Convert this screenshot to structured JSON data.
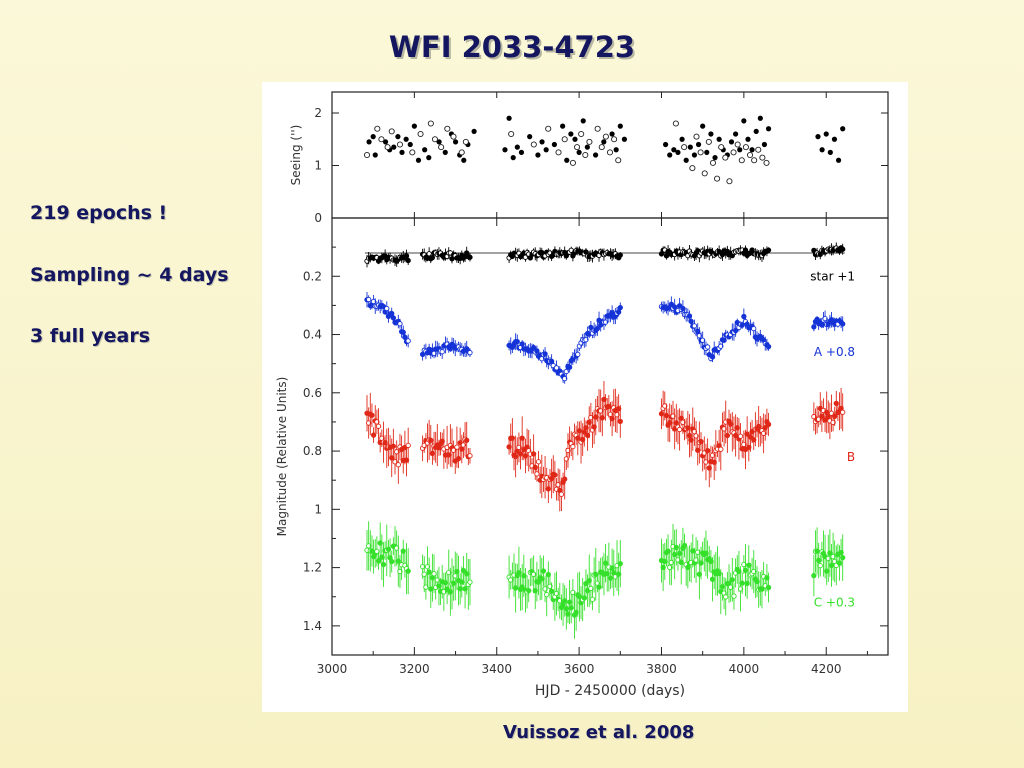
{
  "slide": {
    "title": "WFI 2033-4723",
    "bullets": [
      "219 epochs !",
      "Sampling ~ 4 days",
      "3 full years"
    ],
    "credit": "Vuissoz et al. 2008"
  },
  "chart_data": [
    {
      "type": "scatter",
      "panel": "seeing",
      "ylabel": "Seeing ('')",
      "ylim": [
        0,
        2.4
      ],
      "yticks": [
        0,
        1,
        2
      ],
      "xlim": [
        3000,
        4350
      ],
      "seasons": [
        [
          3085,
          3185
        ],
        [
          3220,
          3335
        ],
        [
          3430,
          3700
        ],
        [
          3800,
          4060
        ],
        [
          4170,
          4240
        ]
      ],
      "series": [
        {
          "marker": "filled",
          "points": [
            [
              3090,
              1.45
            ],
            [
              3100,
              1.55
            ],
            [
              3105,
              1.2
            ],
            [
              3130,
              1.45
            ],
            [
              3140,
              1.3
            ],
            [
              3150,
              1.35
            ],
            [
              3160,
              1.55
            ],
            [
              3170,
              1.25
            ],
            [
              3180,
              1.5
            ],
            [
              3190,
              1.4
            ],
            [
              3200,
              1.75
            ],
            [
              3210,
              1.1
            ],
            [
              3225,
              1.3
            ],
            [
              3235,
              1.15
            ],
            [
              3260,
              1.45
            ],
            [
              3275,
              1.25
            ],
            [
              3290,
              1.6
            ],
            [
              3300,
              1.45
            ],
            [
              3310,
              1.2
            ],
            [
              3320,
              1.1
            ],
            [
              3330,
              1.4
            ],
            [
              3345,
              1.65
            ],
            [
              3420,
              1.3
            ],
            [
              3430,
              1.9
            ],
            [
              3440,
              1.15
            ],
            [
              3450,
              1.35
            ],
            [
              3460,
              1.25
            ],
            [
              3480,
              1.55
            ],
            [
              3500,
              1.2
            ],
            [
              3510,
              1.45
            ],
            [
              3520,
              1.3
            ],
            [
              3540,
              1.4
            ],
            [
              3560,
              1.75
            ],
            [
              3570,
              1.1
            ],
            [
              3580,
              1.6
            ],
            [
              3590,
              1.5
            ],
            [
              3600,
              1.25
            ],
            [
              3610,
              1.85
            ],
            [
              3620,
              1.35
            ],
            [
              3640,
              1.2
            ],
            [
              3660,
              1.45
            ],
            [
              3680,
              1.6
            ],
            [
              3690,
              1.3
            ],
            [
              3700,
              1.75
            ],
            [
              3710,
              1.5
            ],
            [
              3810,
              1.4
            ],
            [
              3820,
              1.2
            ],
            [
              3830,
              1.3
            ],
            [
              3840,
              1.25
            ],
            [
              3850,
              1.5
            ],
            [
              3860,
              1.1
            ],
            [
              3870,
              1.35
            ],
            [
              3880,
              1.2
            ],
            [
              3890,
              1.4
            ],
            [
              3900,
              1.75
            ],
            [
              3910,
              1.25
            ],
            [
              3920,
              1.6
            ],
            [
              3930,
              1.15
            ],
            [
              3940,
              1.5
            ],
            [
              3950,
              1.3
            ],
            [
              3960,
              1.2
            ],
            [
              3970,
              1.45
            ],
            [
              3980,
              1.6
            ],
            [
              3990,
              1.3
            ],
            [
              4000,
              1.85
            ],
            [
              4010,
              1.5
            ],
            [
              4020,
              1.3
            ],
            [
              4030,
              1.65
            ],
            [
              4040,
              1.9
            ],
            [
              4050,
              1.4
            ],
            [
              4060,
              1.7
            ],
            [
              4180,
              1.55
            ],
            [
              4190,
              1.3
            ],
            [
              4200,
              1.6
            ],
            [
              4210,
              1.25
            ],
            [
              4220,
              1.5
            ],
            [
              4230,
              1.1
            ],
            [
              4240,
              1.7
            ]
          ]
        },
        {
          "marker": "open",
          "points": [
            [
              3085,
              1.2
            ],
            [
              3110,
              1.7
            ],
            [
              3120,
              1.5
            ],
            [
              3135,
              1.35
            ],
            [
              3145,
              1.65
            ],
            [
              3165,
              1.4
            ],
            [
              3195,
              1.25
            ],
            [
              3215,
              1.6
            ],
            [
              3240,
              1.8
            ],
            [
              3250,
              1.5
            ],
            [
              3265,
              1.35
            ],
            [
              3280,
              1.7
            ],
            [
              3295,
              1.55
            ],
            [
              3315,
              1.25
            ],
            [
              3325,
              1.45
            ],
            [
              3435,
              1.6
            ],
            [
              3490,
              1.4
            ],
            [
              3525,
              1.7
            ],
            [
              3550,
              1.25
            ],
            [
              3565,
              1.5
            ],
            [
              3585,
              1.05
            ],
            [
              3595,
              1.35
            ],
            [
              3605,
              1.6
            ],
            [
              3615,
              1.2
            ],
            [
              3625,
              1.45
            ],
            [
              3645,
              1.7
            ],
            [
              3655,
              1.35
            ],
            [
              3665,
              1.55
            ],
            [
              3675,
              1.25
            ],
            [
              3685,
              1.5
            ],
            [
              3695,
              1.1
            ],
            [
              3835,
              1.8
            ],
            [
              3855,
              1.35
            ],
            [
              3875,
              0.95
            ],
            [
              3885,
              1.55
            ],
            [
              3895,
              1.25
            ],
            [
              3905,
              0.85
            ],
            [
              3915,
              1.45
            ],
            [
              3925,
              1.05
            ],
            [
              3935,
              0.75
            ],
            [
              3945,
              1.35
            ],
            [
              3955,
              1.15
            ],
            [
              3965,
              0.7
            ],
            [
              3975,
              1.25
            ],
            [
              3985,
              1.4
            ],
            [
              3995,
              1.1
            ],
            [
              4005,
              1.35
            ],
            [
              4015,
              1.2
            ],
            [
              4025,
              1.1
            ],
            [
              4035,
              1.3
            ],
            [
              4045,
              1.15
            ],
            [
              4055,
              1.05
            ]
          ]
        }
      ]
    },
    {
      "type": "scatter",
      "panel": "lightcurves",
      "ylabel": "Magnitude (Relative Units)",
      "xlabel": "HJD - 2450000 (days)",
      "ylim": [
        1.5,
        0.0
      ],
      "yticks": [
        0.2,
        0.4,
        0.6,
        0.8,
        1,
        1.2,
        1.4
      ],
      "xticks": [
        3000,
        3200,
        3400,
        3600,
        3800,
        4000,
        4200
      ],
      "xlim": [
        3000,
        4350
      ],
      "reference_line": {
        "series": "star +1",
        "y": 0.12
      },
      "series": [
        {
          "name": "star +1",
          "color": "#000000",
          "err": 0.015,
          "knots": [
            [
              3080,
              0.14
            ],
            [
              3180,
              0.14
            ],
            [
              3240,
              0.13
            ],
            [
              3330,
              0.13
            ],
            [
              3430,
              0.13
            ],
            [
              3600,
              0.12
            ],
            [
              3700,
              0.13
            ],
            [
              3800,
              0.12
            ],
            [
              3900,
              0.12
            ],
            [
              4060,
              0.12
            ],
            [
              4180,
              0.12
            ],
            [
              4240,
              0.11
            ]
          ]
        },
        {
          "name": "A +0.8",
          "color": "#1533d6",
          "err": 0.02,
          "knots": [
            [
              3080,
              0.29
            ],
            [
              3120,
              0.3
            ],
            [
              3160,
              0.36
            ],
            [
              3200,
              0.46
            ],
            [
              3240,
              0.46
            ],
            [
              3300,
              0.44
            ],
            [
              3340,
              0.47
            ],
            [
              3420,
              0.43
            ],
            [
              3470,
              0.44
            ],
            [
              3520,
              0.48
            ],
            [
              3560,
              0.55
            ],
            [
              3620,
              0.4
            ],
            [
              3660,
              0.35
            ],
            [
              3700,
              0.32
            ],
            [
              3800,
              0.3
            ],
            [
              3860,
              0.32
            ],
            [
              3920,
              0.47
            ],
            [
              3960,
              0.4
            ],
            [
              4000,
              0.35
            ],
            [
              4060,
              0.45
            ],
            [
              4180,
              0.36
            ],
            [
              4240,
              0.35
            ]
          ]
        },
        {
          "name": "B",
          "color": "#e02818",
          "err": 0.05,
          "knots": [
            [
              3080,
              0.67
            ],
            [
              3120,
              0.75
            ],
            [
              3160,
              0.82
            ],
            [
              3200,
              0.8
            ],
            [
              3240,
              0.78
            ],
            [
              3300,
              0.8
            ],
            [
              3340,
              0.78
            ],
            [
              3420,
              0.78
            ],
            [
              3470,
              0.79
            ],
            [
              3520,
              0.9
            ],
            [
              3560,
              0.92
            ],
            [
              3580,
              0.78
            ],
            [
              3620,
              0.72
            ],
            [
              3660,
              0.65
            ],
            [
              3700,
              0.68
            ],
            [
              3800,
              0.66
            ],
            [
              3860,
              0.73
            ],
            [
              3920,
              0.83
            ],
            [
              3960,
              0.72
            ],
            [
              4000,
              0.77
            ],
            [
              4060,
              0.72
            ],
            [
              4180,
              0.69
            ],
            [
              4240,
              0.66
            ]
          ]
        },
        {
          "name": "C +0.3",
          "color": "#35e02a",
          "err": 0.06,
          "knots": [
            [
              3080,
              1.13
            ],
            [
              3140,
              1.16
            ],
            [
              3200,
              1.2
            ],
            [
              3240,
              1.24
            ],
            [
              3300,
              1.25
            ],
            [
              3340,
              1.24
            ],
            [
              3430,
              1.24
            ],
            [
              3520,
              1.25
            ],
            [
              3560,
              1.33
            ],
            [
              3600,
              1.32
            ],
            [
              3640,
              1.26
            ],
            [
              3680,
              1.2
            ],
            [
              3700,
              1.19
            ],
            [
              3800,
              1.16
            ],
            [
              3860,
              1.16
            ],
            [
              3920,
              1.2
            ],
            [
              3960,
              1.28
            ],
            [
              4000,
              1.22
            ],
            [
              4060,
              1.27
            ],
            [
              4180,
              1.18
            ],
            [
              4240,
              1.19
            ]
          ]
        }
      ]
    }
  ]
}
